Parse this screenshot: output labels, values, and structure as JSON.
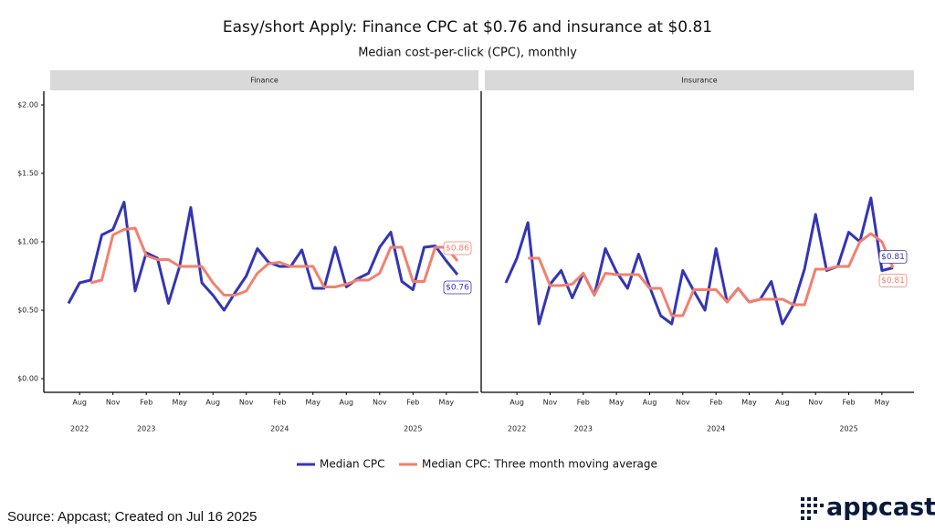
{
  "title": "Easy/short Apply: Finance CPC at $0.76 and insurance at $0.81",
  "subtitle": "Median cost-per-click (CPC), monthly",
  "source": "Source: Appcast; Created on Jul 16 2025",
  "logo": "appcast",
  "chart_data": [
    {
      "type": "line",
      "panel_title": "Finance",
      "x": [
        "2022-07",
        "2022-08",
        "2022-09",
        "2022-10",
        "2022-11",
        "2022-12",
        "2023-01",
        "2023-02",
        "2023-03",
        "2023-04",
        "2023-05",
        "2023-06",
        "2023-07",
        "2023-08",
        "2023-09",
        "2023-10",
        "2023-11",
        "2023-12",
        "2024-01",
        "2024-02",
        "2024-03",
        "2024-04",
        "2024-05",
        "2024-06",
        "2024-07",
        "2024-08",
        "2024-09",
        "2024-10",
        "2024-11",
        "2024-12",
        "2025-01",
        "2025-02",
        "2025-03",
        "2025-04",
        "2025-05",
        "2025-06"
      ],
      "series": [
        {
          "name": "Median CPC",
          "color": "#3335b5",
          "values": [
            0.55,
            0.7,
            0.72,
            1.05,
            1.09,
            1.29,
            0.64,
            0.92,
            0.88,
            0.55,
            0.82,
            1.25,
            0.7,
            0.61,
            0.5,
            0.63,
            0.75,
            0.95,
            0.85,
            0.82,
            0.82,
            0.94,
            0.66,
            0.66,
            0.96,
            0.67,
            0.73,
            0.77,
            0.96,
            1.07,
            0.71,
            0.65,
            0.96,
            0.97,
            0.86,
            0.76
          ],
          "value_labels": [
            null,
            null,
            null,
            null,
            null,
            null,
            null,
            null,
            null,
            null,
            null,
            null,
            null,
            null,
            null,
            null,
            null,
            null,
            null,
            null,
            null,
            null,
            null,
            null,
            null,
            null,
            null,
            null,
            null,
            null,
            null,
            null,
            null,
            null,
            null,
            "$0.76"
          ]
        },
        {
          "name": "Median CPC: Three month moving average",
          "color": "#f2806f",
          "values": [
            null,
            null,
            0.7,
            0.72,
            1.05,
            1.09,
            1.1,
            0.9,
            0.87,
            0.87,
            0.82,
            0.82,
            0.82,
            0.7,
            0.61,
            0.61,
            0.64,
            0.77,
            0.84,
            0.85,
            0.82,
            0.82,
            0.82,
            0.67,
            0.67,
            0.69,
            0.72,
            0.72,
            0.77,
            0.96,
            0.96,
            0.71,
            0.71,
            0.96,
            0.96,
            0.86
          ],
          "value_labels": [
            null,
            null,
            null,
            null,
            null,
            null,
            null,
            null,
            null,
            null,
            null,
            null,
            null,
            null,
            null,
            null,
            null,
            null,
            null,
            null,
            null,
            null,
            null,
            null,
            null,
            null,
            null,
            null,
            null,
            null,
            null,
            null,
            null,
            null,
            null,
            "$0.86"
          ]
        }
      ],
      "ylim": [
        -0.1,
        2.1
      ],
      "yticks": [
        {
          "value": 0,
          "label": "$0.00"
        },
        {
          "value": 0.5,
          "label": "$0.50"
        },
        {
          "value": 1,
          "label": "$1.00"
        },
        {
          "value": 1.5,
          "label": "$1.50"
        },
        {
          "value": 2,
          "label": "$2.00"
        }
      ],
      "xticks": [
        {
          "value": "2022-08",
          "label": "Aug"
        },
        {
          "value": "2022-11",
          "label": "Nov"
        },
        {
          "value": "2023-02",
          "label": "Feb"
        },
        {
          "value": "2023-05",
          "label": "May"
        },
        {
          "value": "2023-08",
          "label": "Aug"
        },
        {
          "value": "2023-11",
          "label": "Nov"
        },
        {
          "value": "2024-02",
          "label": "Feb"
        },
        {
          "value": "2024-05",
          "label": "May"
        },
        {
          "value": "2024-08",
          "label": "Aug"
        },
        {
          "value": "2024-11",
          "label": "Nov"
        },
        {
          "value": "2025-02",
          "label": "Feb"
        },
        {
          "value": "2025-05",
          "label": "May"
        }
      ],
      "year_labels": [
        {
          "value": "2022-08",
          "label": "2022"
        },
        {
          "value": "2023-02",
          "label": "2023"
        },
        {
          "value": "2024-02",
          "label": "2024"
        },
        {
          "value": "2025-02",
          "label": "2025"
        }
      ]
    },
    {
      "type": "line",
      "panel_title": "Insurance",
      "x": [
        "2022-07",
        "2022-08",
        "2022-09",
        "2022-10",
        "2022-11",
        "2022-12",
        "2023-01",
        "2023-02",
        "2023-03",
        "2023-04",
        "2023-05",
        "2023-06",
        "2023-07",
        "2023-08",
        "2023-09",
        "2023-10",
        "2023-11",
        "2023-12",
        "2024-01",
        "2024-02",
        "2024-03",
        "2024-04",
        "2024-05",
        "2024-06",
        "2024-07",
        "2024-08",
        "2024-09",
        "2024-10",
        "2024-11",
        "2024-12",
        "2025-01",
        "2025-02",
        "2025-03",
        "2025-04",
        "2025-05",
        "2025-06"
      ],
      "series": [
        {
          "name": "Median CPC",
          "color": "#3335b5",
          "values": [
            0.7,
            0.88,
            1.14,
            0.4,
            0.69,
            0.79,
            0.59,
            0.77,
            0.61,
            0.95,
            0.78,
            0.66,
            0.91,
            0.67,
            0.46,
            0.4,
            0.79,
            0.64,
            0.5,
            0.95,
            0.56,
            0.66,
            0.56,
            0.58,
            0.71,
            0.4,
            0.54,
            0.8,
            1.2,
            0.79,
            0.82,
            1.07,
            1.0,
            1.32,
            0.79,
            0.81
          ],
          "value_labels": [
            null,
            null,
            null,
            null,
            null,
            null,
            null,
            null,
            null,
            null,
            null,
            null,
            null,
            null,
            null,
            null,
            null,
            null,
            null,
            null,
            null,
            null,
            null,
            null,
            null,
            null,
            null,
            null,
            null,
            null,
            null,
            null,
            null,
            null,
            null,
            "$0.81"
          ]
        },
        {
          "name": "Median CPC: Three month moving average",
          "color": "#f2806f",
          "values": [
            null,
            null,
            0.88,
            0.88,
            0.68,
            0.68,
            0.69,
            0.77,
            0.61,
            0.77,
            0.76,
            0.76,
            0.76,
            0.66,
            0.66,
            0.46,
            0.46,
            0.65,
            0.65,
            0.65,
            0.56,
            0.66,
            0.56,
            0.58,
            0.58,
            0.58,
            0.54,
            0.54,
            0.8,
            0.8,
            0.82,
            0.82,
            1.0,
            1.06,
            1.0,
            0.81
          ],
          "value_labels": [
            null,
            null,
            null,
            null,
            null,
            null,
            null,
            null,
            null,
            null,
            null,
            null,
            null,
            null,
            null,
            null,
            null,
            null,
            null,
            null,
            null,
            null,
            null,
            null,
            null,
            null,
            null,
            null,
            null,
            null,
            null,
            null,
            null,
            null,
            null,
            "$0.81"
          ]
        }
      ],
      "ylim": [
        -0.1,
        2.1
      ],
      "xticks": [
        {
          "value": "2022-08",
          "label": "Aug"
        },
        {
          "value": "2022-11",
          "label": "Nov"
        },
        {
          "value": "2023-02",
          "label": "Feb"
        },
        {
          "value": "2023-05",
          "label": "May"
        },
        {
          "value": "2023-08",
          "label": "Aug"
        },
        {
          "value": "2023-11",
          "label": "Nov"
        },
        {
          "value": "2024-02",
          "label": "Feb"
        },
        {
          "value": "2024-05",
          "label": "May"
        },
        {
          "value": "2024-08",
          "label": "Aug"
        },
        {
          "value": "2024-11",
          "label": "Nov"
        },
        {
          "value": "2025-02",
          "label": "Feb"
        },
        {
          "value": "2025-05",
          "label": "May"
        }
      ],
      "year_labels": [
        {
          "value": "2022-08",
          "label": "2022"
        },
        {
          "value": "2023-02",
          "label": "2023"
        },
        {
          "value": "2024-02",
          "label": "2024"
        },
        {
          "value": "2025-02",
          "label": "2025"
        }
      ]
    }
  ]
}
